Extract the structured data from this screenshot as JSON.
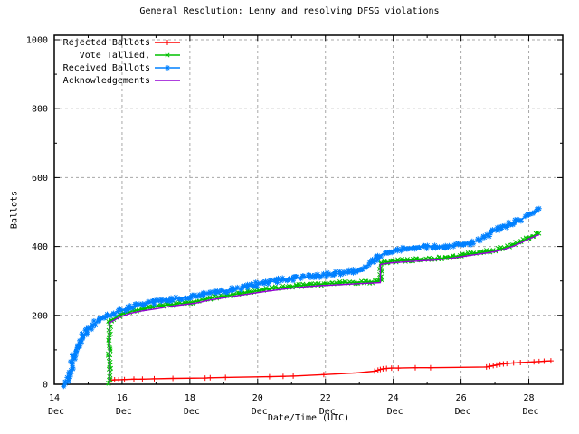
{
  "chart_data": {
    "type": "line",
    "title": "General Resolution: Lenny and resolving DFSG violations",
    "xlabel": "Date/Time (UTC)",
    "ylabel": "Ballots",
    "ylim": [
      0,
      1000
    ],
    "xlim_days": [
      14,
      29
    ],
    "x_month": "Dec",
    "grid": true,
    "legend_position": "top-left",
    "grid_color": "#a8a8a8",
    "border_color": "#000000",
    "x_minor_step_days": 1,
    "y_minor_step": 100,
    "yticks": [
      0,
      200,
      400,
      600,
      800,
      1000
    ],
    "xticks": [
      {
        "day": 14,
        "top": "14",
        "bottom": "Dec"
      },
      {
        "day": 16,
        "top": "16",
        "bottom": "Dec"
      },
      {
        "day": 18,
        "top": "18",
        "bottom": "Dec"
      },
      {
        "day": 20,
        "top": "20",
        "bottom": "Dec"
      },
      {
        "day": 22,
        "top": "22",
        "bottom": "Dec"
      },
      {
        "day": 24,
        "top": "24",
        "bottom": "Dec"
      },
      {
        "day": 26,
        "top": "26",
        "bottom": "Dec"
      },
      {
        "day": 28,
        "top": "28",
        "bottom": "Dec"
      }
    ],
    "series": [
      {
        "name": "Rejected Ballots",
        "color": "#ff0000",
        "marker": "plus",
        "dense_markers": false,
        "jitter": 0,
        "line_width": 1.4,
        "points": [
          [
            15.68,
            12
          ],
          [
            15.78,
            13
          ],
          [
            15.9,
            13
          ],
          [
            16.07,
            14
          ],
          [
            16.35,
            15
          ],
          [
            16.6,
            15
          ],
          [
            16.95,
            16
          ],
          [
            17.5,
            17
          ],
          [
            18.45,
            18
          ],
          [
            18.6,
            19
          ],
          [
            19.05,
            20
          ],
          [
            20.35,
            22
          ],
          [
            20.75,
            23
          ],
          [
            21.05,
            24
          ],
          [
            21.95,
            28
          ],
          [
            22.9,
            33
          ],
          [
            23.45,
            38
          ],
          [
            23.55,
            41
          ],
          [
            23.62,
            43
          ],
          [
            23.7,
            45
          ],
          [
            23.8,
            46
          ],
          [
            23.95,
            47
          ],
          [
            24.15,
            47
          ],
          [
            24.65,
            48
          ],
          [
            25.1,
            48
          ],
          [
            26.75,
            50
          ],
          [
            26.85,
            52
          ],
          [
            26.95,
            54
          ],
          [
            27.05,
            56
          ],
          [
            27.15,
            58
          ],
          [
            27.25,
            59
          ],
          [
            27.35,
            60
          ],
          [
            27.55,
            62
          ],
          [
            27.75,
            63
          ],
          [
            27.95,
            64
          ],
          [
            28.15,
            65
          ],
          [
            28.3,
            66
          ],
          [
            28.45,
            67
          ],
          [
            28.65,
            68
          ]
        ]
      },
      {
        "name": "Vote Tallied,",
        "color": "#00c000",
        "marker": "x",
        "dense_markers": true,
        "jitter": 1.6,
        "line_width": 1.5,
        "points": [
          [
            15.63,
            0
          ],
          [
            15.63,
            183
          ],
          [
            15.7,
            188
          ],
          [
            15.8,
            193
          ],
          [
            15.9,
            198
          ],
          [
            16,
            203
          ],
          [
            16.15,
            208
          ],
          [
            16.3,
            212
          ],
          [
            16.5,
            216
          ],
          [
            16.7,
            220
          ],
          [
            16.9,
            224
          ],
          [
            17.1,
            227
          ],
          [
            17.3,
            230
          ],
          [
            17.5,
            232
          ],
          [
            17.7,
            234
          ],
          [
            17.9,
            236
          ],
          [
            18.1,
            239
          ],
          [
            18.3,
            243
          ],
          [
            18.5,
            248
          ],
          [
            18.7,
            252
          ],
          [
            18.9,
            255
          ],
          [
            19.1,
            258
          ],
          [
            19.3,
            261
          ],
          [
            19.5,
            264
          ],
          [
            19.7,
            267
          ],
          [
            19.9,
            270
          ],
          [
            20.1,
            273
          ],
          [
            20.3,
            276
          ],
          [
            20.5,
            279
          ],
          [
            20.7,
            281
          ],
          [
            20.9,
            283
          ],
          [
            21.1,
            285
          ],
          [
            21.3,
            287
          ],
          [
            21.5,
            289
          ],
          [
            21.7,
            290
          ],
          [
            22,
            292
          ],
          [
            22.3,
            293
          ],
          [
            22.6,
            295
          ],
          [
            22.9,
            296
          ],
          [
            23.2,
            297
          ],
          [
            23.45,
            298
          ],
          [
            23.6,
            299
          ],
          [
            23.63,
            300
          ],
          [
            23.63,
            352
          ],
          [
            23.7,
            354
          ],
          [
            23.85,
            356
          ],
          [
            24,
            358
          ],
          [
            24.2,
            359
          ],
          [
            24.4,
            360
          ],
          [
            24.6,
            361
          ],
          [
            24.8,
            362
          ],
          [
            25,
            363
          ],
          [
            25.2,
            364
          ],
          [
            25.4,
            366
          ],
          [
            25.6,
            368
          ],
          [
            25.8,
            371
          ],
          [
            26,
            374
          ],
          [
            26.15,
            377
          ],
          [
            26.3,
            379
          ],
          [
            26.45,
            381
          ],
          [
            26.6,
            383
          ],
          [
            26.75,
            385
          ],
          [
            26.9,
            387
          ],
          [
            27,
            389
          ],
          [
            27.1,
            391
          ],
          [
            27.2,
            394
          ],
          [
            27.3,
            397
          ],
          [
            27.4,
            400
          ],
          [
            27.5,
            403
          ],
          [
            27.6,
            407
          ],
          [
            27.7,
            411
          ],
          [
            27.8,
            416
          ],
          [
            27.9,
            421
          ],
          [
            28,
            426
          ],
          [
            28.1,
            430
          ],
          [
            28.2,
            434
          ],
          [
            28.3,
            438
          ]
        ]
      },
      {
        "name": "Received Ballots",
        "color": "#0080ff",
        "marker": "star",
        "dense_markers": true,
        "jitter": 2.3,
        "line_width": 1.7,
        "points": [
          [
            14.32,
            0
          ],
          [
            14.36,
            5
          ],
          [
            14.4,
            9
          ],
          [
            14.44,
            16
          ],
          [
            14.48,
            30
          ],
          [
            14.52,
            50
          ],
          [
            14.56,
            70
          ],
          [
            14.6,
            88
          ],
          [
            14.64,
            100
          ],
          [
            14.68,
            110
          ],
          [
            14.72,
            118
          ],
          [
            14.78,
            128
          ],
          [
            14.84,
            138
          ],
          [
            14.9,
            147
          ],
          [
            14.96,
            155
          ],
          [
            15.02,
            161
          ],
          [
            15.1,
            168
          ],
          [
            15.18,
            175
          ],
          [
            15.26,
            181
          ],
          [
            15.34,
            186
          ],
          [
            15.42,
            190
          ],
          [
            15.5,
            193
          ],
          [
            15.58,
            196
          ],
          [
            15.66,
            199
          ],
          [
            15.74,
            203
          ],
          [
            15.84,
            208
          ],
          [
            15.94,
            213
          ],
          [
            16.04,
            217
          ],
          [
            16.16,
            221
          ],
          [
            16.28,
            225
          ],
          [
            16.4,
            228
          ],
          [
            16.55,
            231
          ],
          [
            16.7,
            234
          ],
          [
            16.85,
            237
          ],
          [
            17,
            240
          ],
          [
            17.2,
            243
          ],
          [
            17.4,
            246
          ],
          [
            17.6,
            248
          ],
          [
            17.8,
            251
          ],
          [
            18,
            254
          ],
          [
            18.2,
            258
          ],
          [
            18.4,
            262
          ],
          [
            18.6,
            265
          ],
          [
            18.8,
            268
          ],
          [
            19,
            271
          ],
          [
            19.2,
            274
          ],
          [
            19.4,
            278
          ],
          [
            19.6,
            282
          ],
          [
            19.8,
            286
          ],
          [
            20,
            290
          ],
          [
            20.2,
            294
          ],
          [
            20.4,
            298
          ],
          [
            20.6,
            301
          ],
          [
            20.8,
            304
          ],
          [
            21,
            307
          ],
          [
            21.2,
            309
          ],
          [
            21.4,
            311
          ],
          [
            21.6,
            313
          ],
          [
            21.8,
            315
          ],
          [
            22,
            317
          ],
          [
            22.2,
            320
          ],
          [
            22.4,
            322
          ],
          [
            22.6,
            325
          ],
          [
            22.8,
            327
          ],
          [
            23,
            331
          ],
          [
            23.1,
            336
          ],
          [
            23.2,
            342
          ],
          [
            23.3,
            350
          ],
          [
            23.4,
            358
          ],
          [
            23.5,
            366
          ],
          [
            23.6,
            373
          ],
          [
            23.7,
            379
          ],
          [
            23.8,
            383
          ],
          [
            23.9,
            386
          ],
          [
            24,
            389
          ],
          [
            24.1,
            391
          ],
          [
            24.2,
            393
          ],
          [
            24.35,
            395
          ],
          [
            24.5,
            397
          ],
          [
            24.7,
            398
          ],
          [
            24.9,
            399
          ],
          [
            25.1,
            400
          ],
          [
            25.4,
            401
          ],
          [
            25.7,
            403
          ],
          [
            26,
            405
          ],
          [
            26.15,
            407
          ],
          [
            26.3,
            411
          ],
          [
            26.45,
            417
          ],
          [
            26.6,
            424
          ],
          [
            26.75,
            432
          ],
          [
            26.9,
            440
          ],
          [
            27,
            446
          ],
          [
            27.1,
            451
          ],
          [
            27.2,
            455
          ],
          [
            27.3,
            459
          ],
          [
            27.4,
            463
          ],
          [
            27.5,
            467
          ],
          [
            27.6,
            471
          ],
          [
            27.7,
            475
          ],
          [
            27.8,
            480
          ],
          [
            27.9,
            486
          ],
          [
            28,
            492
          ],
          [
            28.1,
            498
          ],
          [
            28.2,
            504
          ],
          [
            28.3,
            510
          ]
        ]
      },
      {
        "name": "Acknowledgements",
        "color": "#9400d3",
        "marker": "none",
        "dense_markers": false,
        "jitter": 0,
        "line_width": 1.4,
        "points": [
          [
            15.62,
            0
          ],
          [
            15.62,
            178
          ],
          [
            15.8,
            188
          ],
          [
            16,
            198
          ],
          [
            16.3,
            207
          ],
          [
            16.6,
            213
          ],
          [
            17,
            219
          ],
          [
            17.4,
            226
          ],
          [
            17.8,
            231
          ],
          [
            18.2,
            236
          ],
          [
            18.6,
            245
          ],
          [
            19,
            251
          ],
          [
            19.4,
            257
          ],
          [
            19.8,
            263
          ],
          [
            20.2,
            269
          ],
          [
            20.6,
            274
          ],
          [
            21,
            279
          ],
          [
            21.4,
            283
          ],
          [
            21.8,
            286
          ],
          [
            22.2,
            288
          ],
          [
            22.6,
            290
          ],
          [
            23,
            292
          ],
          [
            23.4,
            294
          ],
          [
            23.62,
            295
          ],
          [
            23.62,
            348
          ],
          [
            23.8,
            351
          ],
          [
            24,
            353
          ],
          [
            24.4,
            356
          ],
          [
            24.8,
            358
          ],
          [
            25.2,
            360
          ],
          [
            25.6,
            364
          ],
          [
            26,
            370
          ],
          [
            26.4,
            376
          ],
          [
            26.8,
            382
          ],
          [
            27,
            385
          ],
          [
            27.2,
            390
          ],
          [
            27.4,
            396
          ],
          [
            27.6,
            403
          ],
          [
            27.8,
            412
          ],
          [
            28,
            422
          ],
          [
            28.15,
            428
          ],
          [
            28.3,
            434
          ]
        ]
      }
    ]
  }
}
